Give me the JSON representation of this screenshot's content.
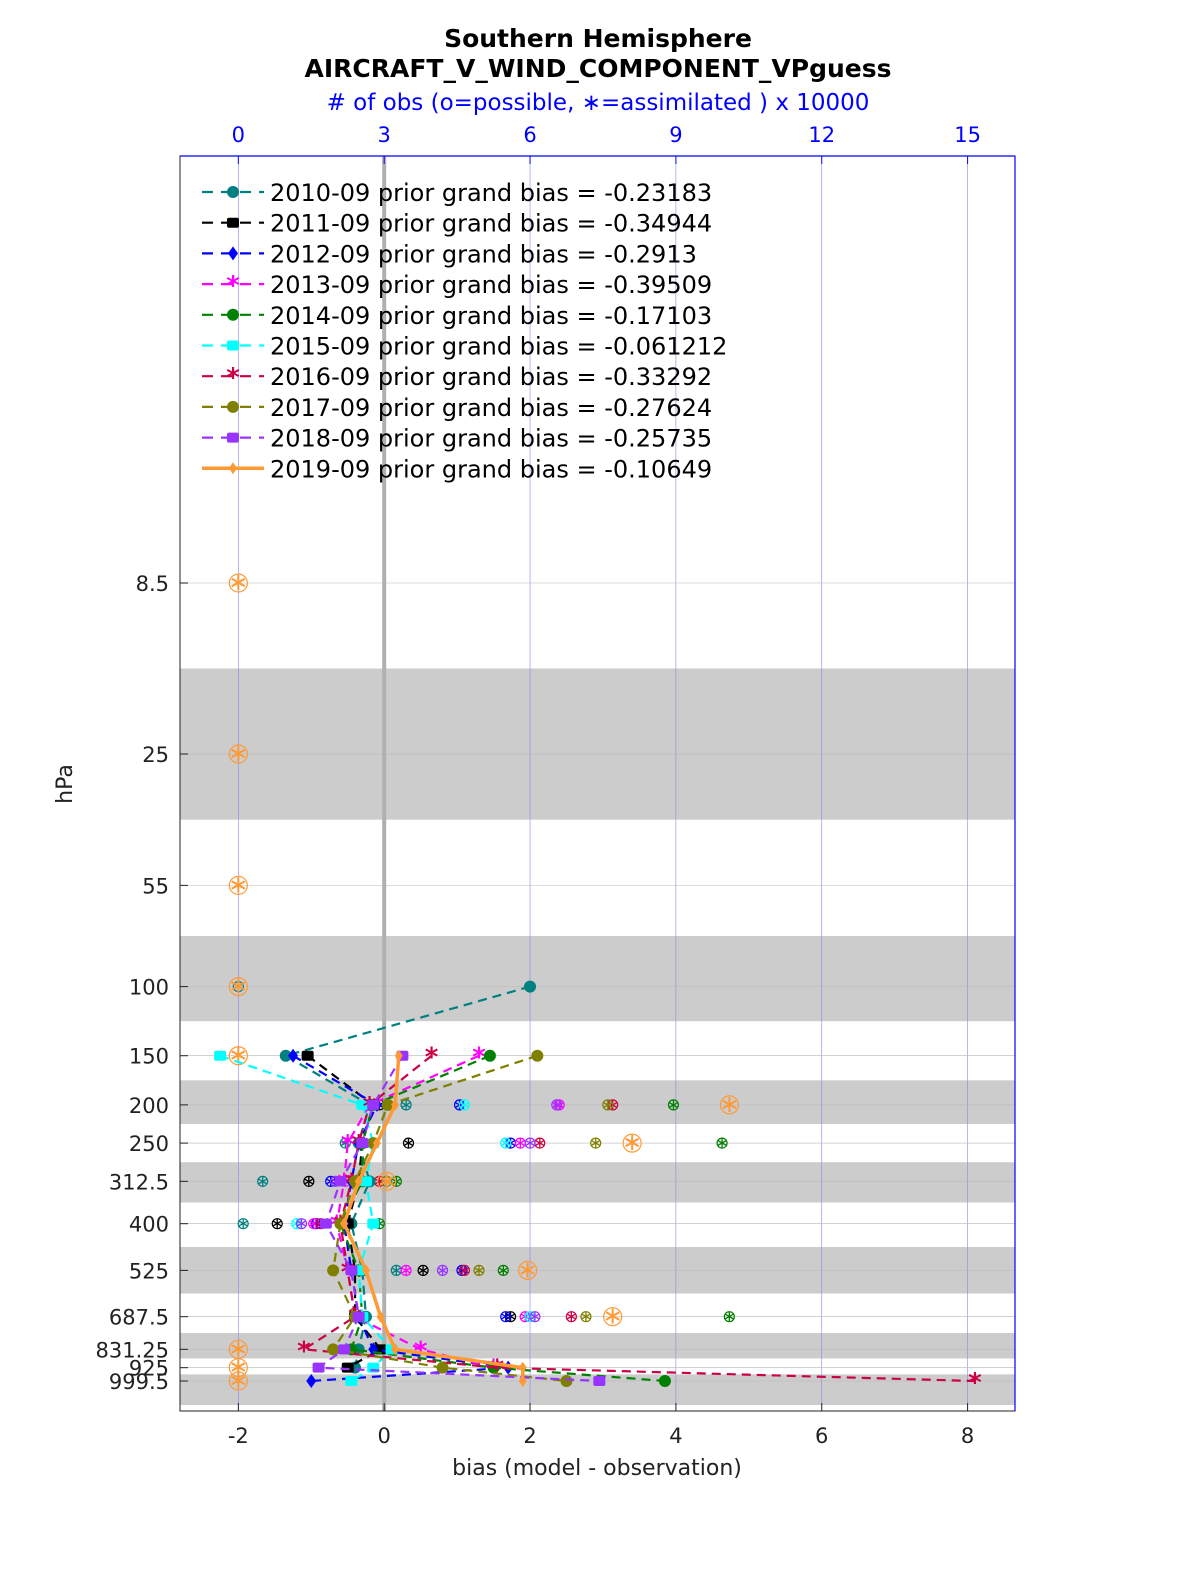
{
  "title_line1": "Southern Hemisphere",
  "title_line2": "AIRCRAFT_V_WIND_COMPONENT_VPguess",
  "top_axis_label": "# of obs (o=possible, ∗=assimilated ) x 10000",
  "colors": {
    "top_axis": "#0000ff",
    "band": "#cccccc"
  },
  "chart_data": {
    "type": "line",
    "xlabel": "bias (model - observation)",
    "ylabel": "hPa",
    "xlim": [
      -2.8,
      8.65
    ],
    "x_ticks": [
      -2,
      0,
      2,
      4,
      6,
      8
    ],
    "top_axis": {
      "ticks": [
        0,
        3,
        6,
        9,
        12,
        15
      ],
      "scale": "x 10000"
    },
    "levels": [
      8.5,
      25,
      55,
      100,
      150,
      200,
      250,
      312.5,
      400,
      525,
      687.5,
      831.25,
      925,
      999.5
    ],
    "y_tick_labels": [
      "8.5",
      "25",
      "55",
      "100",
      "150",
      "200",
      "250",
      "312.5",
      "400",
      "525",
      "687.5",
      "831.25",
      "925",
      "999.5"
    ],
    "grid": true,
    "legend_position": "top-left",
    "series": [
      {
        "name": "2010-09 prior grand bias = -0.23183",
        "color": "#008080",
        "marker": "circle",
        "dashed": true,
        "points": [
          [
            2.0,
            100
          ],
          [
            -1.35,
            150
          ],
          [
            -0.2,
            200
          ],
          [
            -0.35,
            250
          ],
          [
            -0.2,
            312.5
          ],
          [
            -0.45,
            400
          ],
          [
            -0.3,
            525
          ],
          [
            -0.25,
            687.5
          ],
          [
            -0.35,
            831.25
          ],
          [
            -0.4,
            925
          ]
        ]
      },
      {
        "name": "2011-09 prior grand bias = -0.34944",
        "color": "#000000",
        "marker": "square",
        "dashed": true,
        "points": [
          [
            -1.05,
            150
          ],
          [
            -0.15,
            200
          ],
          [
            -0.3,
            250
          ],
          [
            -0.35,
            312.5
          ],
          [
            -0.5,
            400
          ],
          [
            -0.4,
            525
          ],
          [
            -0.4,
            687.5
          ],
          [
            -0.05,
            831.25
          ],
          [
            -0.5,
            925
          ]
        ]
      },
      {
        "name": "2012-09 prior grand bias = -0.2913",
        "color": "#0000ff",
        "marker": "diamond",
        "dashed": true,
        "points": [
          [
            -1.25,
            150
          ],
          [
            -0.1,
            200
          ],
          [
            -0.35,
            250
          ],
          [
            -0.45,
            312.5
          ],
          [
            -0.55,
            400
          ],
          [
            -0.45,
            525
          ],
          [
            -0.35,
            687.5
          ],
          [
            -0.15,
            831.25
          ],
          [
            1.7,
            925
          ],
          [
            -1.0,
            999.5
          ]
        ]
      },
      {
        "name": "2013-09 prior grand bias = -0.39509",
        "color": "#ff00ff",
        "marker": "star",
        "dashed": true,
        "points": [
          [
            1.3,
            150
          ],
          [
            -0.2,
            200
          ],
          [
            -0.5,
            250
          ],
          [
            -0.55,
            312.5
          ],
          [
            -0.65,
            400
          ],
          [
            -0.5,
            525
          ],
          [
            -0.4,
            687.5
          ],
          [
            0.5,
            831.25
          ],
          [
            1.5,
            925
          ]
        ]
      },
      {
        "name": "2014-09 prior grand bias = -0.17103",
        "color": "#008000",
        "marker": "hexagram",
        "dashed": true,
        "points": [
          [
            1.45,
            150
          ],
          [
            -0.15,
            200
          ],
          [
            -0.3,
            250
          ],
          [
            -0.3,
            312.5
          ],
          [
            -0.6,
            400
          ],
          [
            -0.35,
            525
          ],
          [
            -0.3,
            687.5
          ],
          [
            -0.45,
            831.25
          ],
          [
            1.5,
            925
          ],
          [
            3.85,
            999.5
          ]
        ]
      },
      {
        "name": "2015-09 prior grand bias = -0.061212",
        "color": "#00ffff",
        "marker": "square",
        "dashed": true,
        "points": [
          [
            -2.25,
            150
          ],
          [
            -0.3,
            200
          ],
          [
            -0.15,
            250
          ],
          [
            -0.25,
            312.5
          ],
          [
            -0.15,
            400
          ],
          [
            -0.35,
            525
          ],
          [
            -0.3,
            687.5
          ],
          [
            0.1,
            831.25
          ],
          [
            -0.15,
            925
          ],
          [
            -0.45,
            999.5
          ]
        ]
      },
      {
        "name": "2016-09 prior grand bias = -0.33292",
        "color": "#cc0044",
        "marker": "star",
        "dashed": true,
        "points": [
          [
            0.65,
            150
          ],
          [
            -0.2,
            200
          ],
          [
            -0.35,
            250
          ],
          [
            -0.45,
            312.5
          ],
          [
            -0.6,
            400
          ],
          [
            -0.5,
            525
          ],
          [
            -0.4,
            687.5
          ],
          [
            -1.1,
            831.25
          ],
          [
            1.55,
            925
          ],
          [
            8.1,
            999.5
          ]
        ]
      },
      {
        "name": "2017-09 prior grand bias = -0.27624",
        "color": "#808000",
        "marker": "circle",
        "dashed": true,
        "points": [
          [
            2.1,
            150
          ],
          [
            0.05,
            200
          ],
          [
            -0.15,
            250
          ],
          [
            -0.4,
            312.5
          ],
          [
            -0.6,
            400
          ],
          [
            -0.7,
            525
          ],
          [
            -0.4,
            687.5
          ],
          [
            -0.7,
            831.25
          ],
          [
            0.8,
            925
          ],
          [
            2.5,
            999.5
          ]
        ]
      },
      {
        "name": "2018-09 prior grand bias = -0.25735",
        "color": "#9933ff",
        "marker": "square",
        "dashed": true,
        "points": [
          [
            0.25,
            150
          ],
          [
            -0.15,
            200
          ],
          [
            -0.3,
            250
          ],
          [
            -0.6,
            312.5
          ],
          [
            -0.8,
            400
          ],
          [
            -0.45,
            525
          ],
          [
            -0.35,
            687.5
          ],
          [
            -0.55,
            831.25
          ],
          [
            -0.9,
            925
          ],
          [
            2.95,
            999.5
          ]
        ]
      },
      {
        "name": "2019-09 prior grand bias = -0.10649",
        "color": "#ff9933",
        "marker": "diamond",
        "dashed": false,
        "points": [
          [
            0.2,
            150
          ],
          [
            0.15,
            200
          ],
          [
            -0.1,
            250
          ],
          [
            -0.35,
            312.5
          ],
          [
            -0.55,
            400
          ],
          [
            -0.25,
            525
          ],
          [
            -0.05,
            687.5
          ],
          [
            0.15,
            831.25
          ],
          [
            1.9,
            925
          ],
          [
            1.9,
            999.5
          ]
        ]
      }
    ],
    "obs_counts_x10000": [
      {
        "series": 0,
        "level": 100,
        "possible": 0,
        "assimilated": 0
      },
      {
        "series": 0,
        "level": 200,
        "possible": 3.45,
        "assimilated": 3.45
      },
      {
        "series": 0,
        "level": 250,
        "possible": 2.2,
        "assimilated": 2.2
      },
      {
        "series": 0,
        "level": 312.5,
        "possible": 0.5,
        "assimilated": 0.5
      },
      {
        "series": 0,
        "level": 400,
        "possible": 0.1,
        "assimilated": 0.1
      },
      {
        "series": 0,
        "level": 525,
        "possible": 3.25,
        "assimilated": 3.25
      },
      {
        "series": 1,
        "level": 200,
        "possible": 2.9,
        "assimilated": 2.9
      },
      {
        "series": 1,
        "level": 250,
        "possible": 3.5,
        "assimilated": 3.5
      },
      {
        "series": 1,
        "level": 312.5,
        "possible": 1.45,
        "assimilated": 1.45
      },
      {
        "series": 1,
        "level": 400,
        "possible": 0.8,
        "assimilated": 0.8
      },
      {
        "series": 1,
        "level": 525,
        "possible": 3.8,
        "assimilated": 3.8
      },
      {
        "series": 1,
        "level": 687.5,
        "possible": 5.6,
        "assimilated": 5.6
      },
      {
        "series": 2,
        "level": 200,
        "possible": 4.55,
        "assimilated": 4.55
      },
      {
        "series": 2,
        "level": 250,
        "possible": 5.6,
        "assimilated": 5.6
      },
      {
        "series": 2,
        "level": 312.5,
        "possible": 1.9,
        "assimilated": 1.9
      },
      {
        "series": 2,
        "level": 400,
        "possible": 1.6,
        "assimilated": 1.6
      },
      {
        "series": 2,
        "level": 525,
        "possible": 4.6,
        "assimilated": 4.6
      },
      {
        "series": 2,
        "level": 687.5,
        "possible": 5.5,
        "assimilated": 5.5
      },
      {
        "series": 3,
        "level": 200,
        "possible": 6.6,
        "assimilated": 6.6
      },
      {
        "series": 3,
        "level": 250,
        "possible": 5.8,
        "assimilated": 5.8
      },
      {
        "series": 3,
        "level": 312.5,
        "possible": 2.2,
        "assimilated": 2.2
      },
      {
        "series": 3,
        "level": 400,
        "possible": 1.55,
        "assimilated": 1.55
      },
      {
        "series": 3,
        "level": 525,
        "possible": 3.45,
        "assimilated": 3.45
      },
      {
        "series": 3,
        "level": 687.5,
        "possible": 5.9,
        "assimilated": 5.9
      },
      {
        "series": 4,
        "level": 200,
        "possible": 8.95,
        "assimilated": 8.95
      },
      {
        "series": 4,
        "level": 250,
        "possible": 9.95,
        "assimilated": 9.95
      },
      {
        "series": 4,
        "level": 312.5,
        "possible": 3.25,
        "assimilated": 3.25
      },
      {
        "series": 4,
        "level": 400,
        "possible": 2.9,
        "assimilated": 2.9
      },
      {
        "series": 4,
        "level": 525,
        "possible": 5.45,
        "assimilated": 5.45
      },
      {
        "series": 4,
        "level": 687.5,
        "possible": 10.1,
        "assimilated": 10.1
      },
      {
        "series": 5,
        "level": 200,
        "possible": 4.65,
        "assimilated": 4.65
      },
      {
        "series": 5,
        "level": 250,
        "possible": 5.5,
        "assimilated": 5.5
      },
      {
        "series": 5,
        "level": 312.5,
        "possible": 2.5,
        "assimilated": 2.5
      },
      {
        "series": 5,
        "level": 400,
        "possible": 1.2,
        "assimilated": 1.2
      },
      {
        "series": 5,
        "level": 687.5,
        "possible": 6.0,
        "assimilated": 6.0
      },
      {
        "series": 6,
        "level": 200,
        "possible": 7.7,
        "assimilated": 7.7
      },
      {
        "series": 6,
        "level": 250,
        "possible": 6.2,
        "assimilated": 6.2
      },
      {
        "series": 6,
        "level": 312.5,
        "possible": 2.9,
        "assimilated": 2.9
      },
      {
        "series": 6,
        "level": 400,
        "possible": 1.7,
        "assimilated": 1.7
      },
      {
        "series": 6,
        "level": 525,
        "possible": 4.65,
        "assimilated": 4.65
      },
      {
        "series": 6,
        "level": 687.5,
        "possible": 6.85,
        "assimilated": 6.85
      },
      {
        "series": 7,
        "level": 200,
        "possible": 7.6,
        "assimilated": 7.6
      },
      {
        "series": 7,
        "level": 250,
        "possible": 7.35,
        "assimilated": 7.35
      },
      {
        "series": 7,
        "level": 312.5,
        "possible": 3.05,
        "assimilated": 3.05
      },
      {
        "series": 7,
        "level": 525,
        "possible": 4.95,
        "assimilated": 4.95
      },
      {
        "series": 7,
        "level": 687.5,
        "possible": 7.15,
        "assimilated": 7.15
      },
      {
        "series": 8,
        "level": 200,
        "possible": 6.55,
        "assimilated": 6.55
      },
      {
        "series": 8,
        "level": 250,
        "possible": 6.0,
        "assimilated": 6.0
      },
      {
        "series": 8,
        "level": 312.5,
        "possible": 2.0,
        "assimilated": 2.0
      },
      {
        "series": 8,
        "level": 400,
        "possible": 1.3,
        "assimilated": 1.3
      },
      {
        "series": 8,
        "level": 525,
        "possible": 4.2,
        "assimilated": 4.2
      },
      {
        "series": 8,
        "level": 687.5,
        "possible": 6.1,
        "assimilated": 6.1
      },
      {
        "series": 9,
        "level": 8.5,
        "possible": 0,
        "assimilated": 0
      },
      {
        "series": 9,
        "level": 25,
        "possible": 0,
        "assimilated": 0
      },
      {
        "series": 9,
        "level": 55,
        "possible": 0,
        "assimilated": 0
      },
      {
        "series": 9,
        "level": 100,
        "possible": 0,
        "assimilated": 0
      },
      {
        "series": 9,
        "level": 150,
        "possible": 0,
        "assimilated": 0
      },
      {
        "series": 9,
        "level": 200,
        "possible": 10.1,
        "assimilated": 10.1
      },
      {
        "series": 9,
        "level": 250,
        "possible": 8.1,
        "assimilated": 8.1
      },
      {
        "series": 9,
        "level": 312.5,
        "possible": 3.05,
        "assimilated": 3.05
      },
      {
        "series": 9,
        "level": 525,
        "possible": 5.95,
        "assimilated": 5.95
      },
      {
        "series": 9,
        "level": 687.5,
        "possible": 7.7,
        "assimilated": 7.7
      },
      {
        "series": 9,
        "level": 831.25,
        "possible": 0,
        "assimilated": 0
      },
      {
        "series": 9,
        "level": 925,
        "possible": 0,
        "assimilated": 0
      },
      {
        "series": 9,
        "level": 999.5,
        "possible": 0,
        "assimilated": 0
      }
    ]
  }
}
